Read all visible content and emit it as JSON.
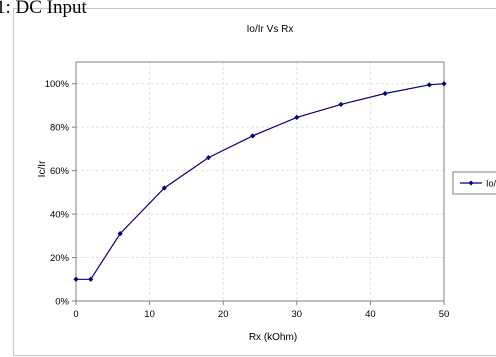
{
  "heading": "1: DC Input",
  "chart_data": {
    "type": "line",
    "title": "Io/Ir Vs Rx",
    "xlabel": "Rx (kOhm)",
    "ylabel": "Ic/Ir",
    "xlim": [
      0,
      50
    ],
    "ylim": [
      0,
      110
    ],
    "x_ticks": [
      "0",
      "10",
      "20",
      "30",
      "40",
      "50"
    ],
    "y_ticks": [
      "0%",
      "20%",
      "40%",
      "60%",
      "80%",
      "100%"
    ],
    "grid": true,
    "legend_position": "right",
    "series": [
      {
        "name": "Io/",
        "color": "#000080",
        "x": [
          0,
          2,
          6,
          12,
          18,
          24,
          30,
          36,
          42,
          48,
          50
        ],
        "y": [
          10,
          10,
          31,
          52,
          66,
          76,
          84.5,
          90.5,
          95.5,
          99.5,
          100
        ]
      }
    ]
  }
}
